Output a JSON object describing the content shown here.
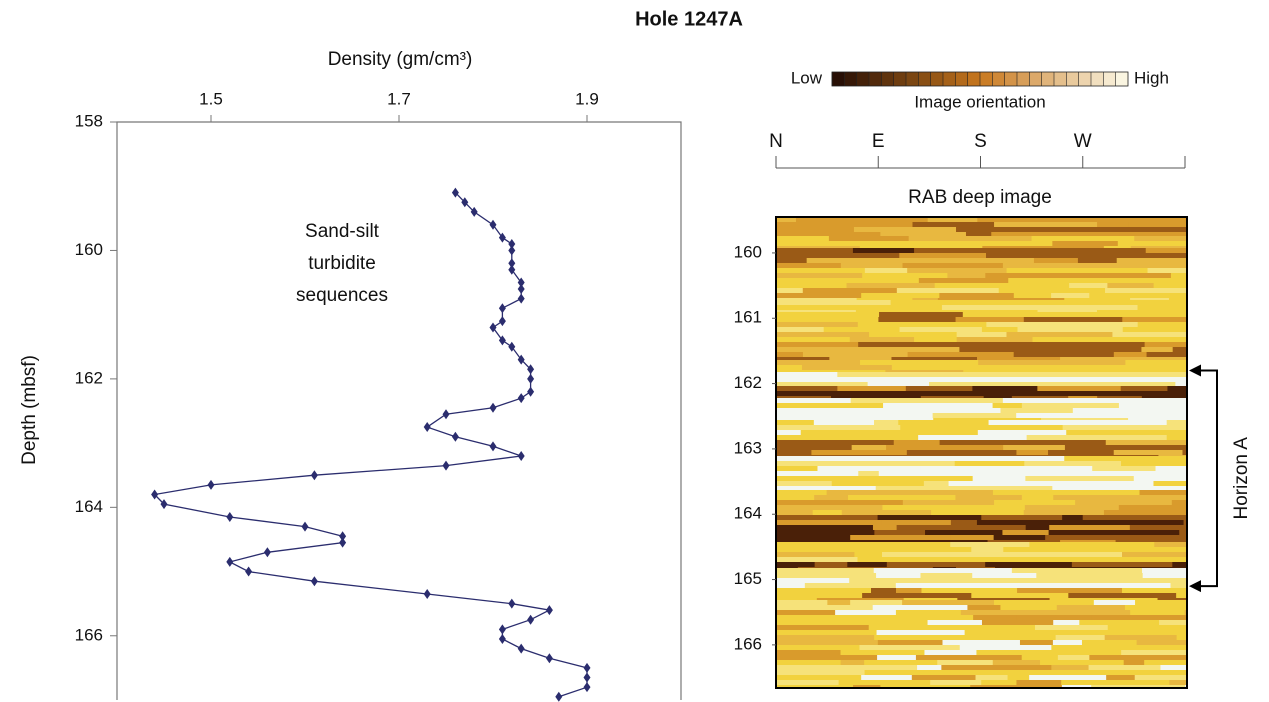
{
  "title": "Hole 1247A",
  "chart_data": [
    {
      "type": "line",
      "xlabel": "Density (gm/cm³)",
      "ylabel": "Depth (mbsf)",
      "annotation": [
        "Sand-silt",
        "turbidite",
        "sequences"
      ],
      "color": "#2b2d6e",
      "xlim": [
        1.4,
        2.0
      ],
      "xticks": [
        1.5,
        1.7,
        1.9
      ],
      "ylim": [
        158,
        167
      ],
      "yticks": [
        158,
        160,
        162,
        164,
        166
      ],
      "x": [
        159.1,
        159.25,
        159.4,
        159.6,
        159.8,
        159.9,
        160.0,
        160.2,
        160.3,
        160.5,
        160.6,
        160.75,
        160.9,
        161.1,
        161.2,
        161.4,
        161.5,
        161.7,
        161.85,
        162.0,
        162.2,
        162.3,
        162.45,
        162.55,
        162.75,
        162.9,
        163.05,
        163.2,
        163.35,
        163.5,
        163.65,
        163.8,
        163.95,
        164.15,
        164.3,
        164.45,
        164.55,
        164.7,
        164.85,
        165.0,
        165.15,
        165.35,
        165.5,
        165.6,
        165.75,
        165.9,
        166.05,
        166.2,
        166.35,
        166.5,
        166.65,
        166.8,
        166.95
      ],
      "values": [
        1.76,
        1.77,
        1.78,
        1.8,
        1.81,
        1.82,
        1.82,
        1.82,
        1.82,
        1.83,
        1.83,
        1.83,
        1.81,
        1.81,
        1.8,
        1.81,
        1.82,
        1.83,
        1.84,
        1.84,
        1.84,
        1.83,
        1.8,
        1.75,
        1.73,
        1.76,
        1.8,
        1.83,
        1.75,
        1.61,
        1.5,
        1.44,
        1.45,
        1.52,
        1.6,
        1.64,
        1.64,
        1.56,
        1.52,
        1.54,
        1.61,
        1.73,
        1.82,
        1.86,
        1.84,
        1.81,
        1.81,
        1.83,
        1.86,
        1.9,
        1.9,
        1.9,
        1.87
      ]
    },
    {
      "type": "image",
      "title": "RAB deep image",
      "xlabel": "Image orientation",
      "colorbar": {
        "low": "Low",
        "high": "High"
      },
      "xlim": [
        0,
        360
      ],
      "xticks": [
        {
          "value": 0,
          "label": "N"
        },
        {
          "value": 90,
          "label": "E"
        },
        {
          "value": 180,
          "label": "S"
        },
        {
          "value": 270,
          "label": "W"
        }
      ],
      "ylim": [
        159.45,
        166.66
      ],
      "yticks": [
        160,
        161,
        162,
        163,
        164,
        165,
        166
      ],
      "horizon": {
        "label": "Horizon A",
        "top": 161.8,
        "base": 165.1
      }
    }
  ]
}
